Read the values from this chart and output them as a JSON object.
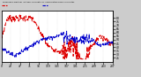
{
  "title": "Milwaukee Weather  Outdoor Humidity vs. Temperature Every 5 Minutes",
  "bg_color": "#cccccc",
  "plot_bg": "#ffffff",
  "red_line_color": "#dd0000",
  "blue_line_color": "#0000cc",
  "right_yticks": [
    25,
    30,
    35,
    40,
    45,
    50,
    55,
    60,
    65,
    70,
    75,
    80
  ],
  "ylim_humidity": [
    0,
    100
  ],
  "ylim_temp": [
    20,
    90
  ],
  "n_points": 288,
  "grid_color": "#cccccc",
  "legend_red_label": "Humidity",
  "legend_blue_label": "Temperature"
}
